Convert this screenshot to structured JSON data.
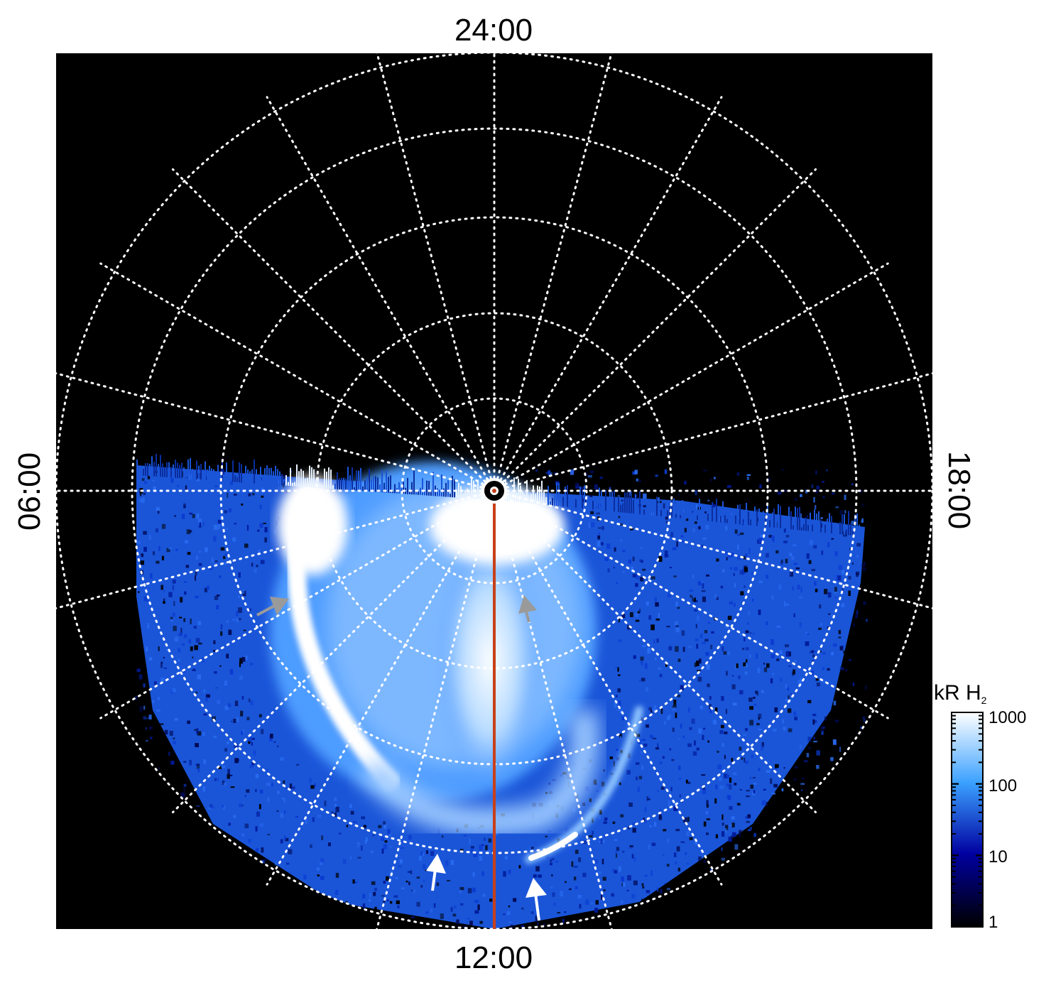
{
  "figure": {
    "local_time_labels": {
      "top": "24:00",
      "bottom": "12:00",
      "left": "06:00",
      "right": "18:00"
    },
    "colorbar": {
      "unit_label": "kR H",
      "unit_subscript": "2",
      "scale": "log",
      "ticks": [
        "1000",
        "100",
        "10",
        "1"
      ],
      "colors": [
        "#ffffff",
        "#3aa0ff",
        "#0000a0",
        "#000000"
      ]
    },
    "colors": {
      "background": "#000000",
      "grid": "#ffffff",
      "meridian": "#c8401a",
      "arrow_white": "#ffffff",
      "arrow_grey": "#9a9a9a"
    }
  }
}
